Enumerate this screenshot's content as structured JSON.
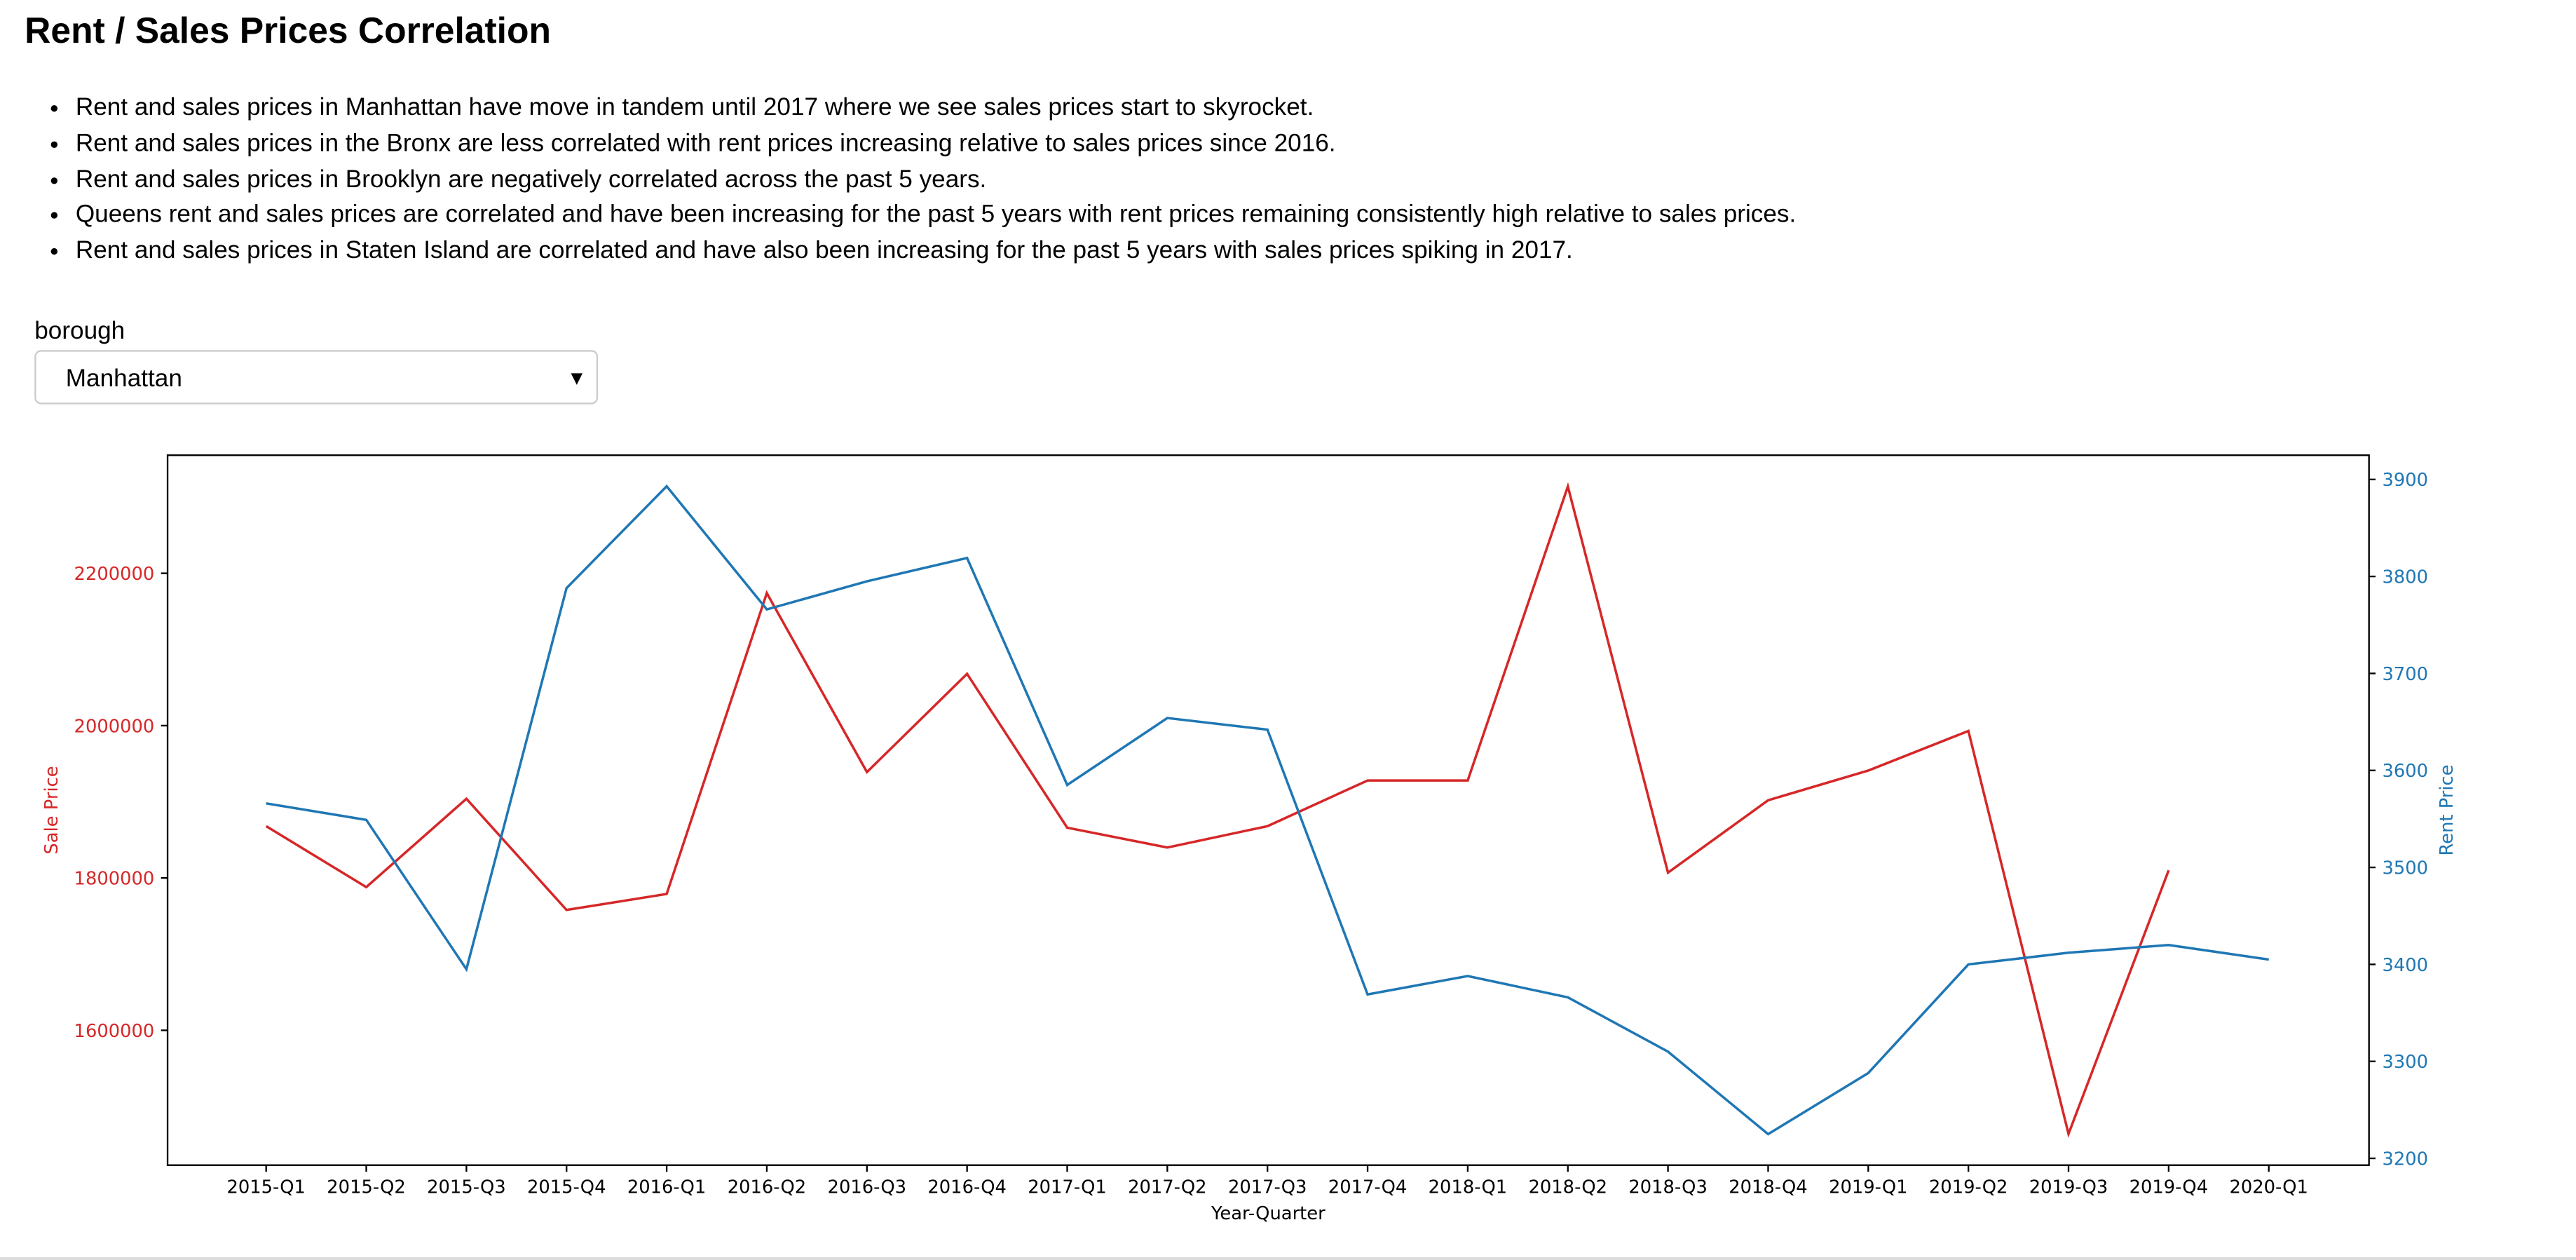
{
  "header": {
    "title": "Rent / Sales Prices Correlation"
  },
  "bullets": [
    "Rent and sales prices in Manhattan have move in tandem until 2017 where we see sales prices start to skyrocket.",
    "Rent and sales prices in the Bronx are less correlated with rent prices increasing relative to sales prices since 2016.",
    "Rent and sales prices in Brooklyn are negatively correlated across the past 5 years.",
    "Queens rent and sales prices are correlated and have been increasing for the past 5 years with rent prices remaining consistently high relative to sales prices.",
    "Rent and sales prices in Staten Island are correlated and have also been increasing for the past 5 years with sales prices spiking in 2017."
  ],
  "dropdown": {
    "label": "borough",
    "value": "Manhattan"
  },
  "chart_data": {
    "type": "line",
    "xlabel": "Year-Quarter",
    "ylabel": "Sale Price",
    "y2label": "Rent Price",
    "categories": [
      "2015-Q1",
      "2015-Q2",
      "2015-Q3",
      "2015-Q4",
      "2016-Q1",
      "2016-Q2",
      "2016-Q3",
      "2016-Q4",
      "2017-Q1",
      "2017-Q2",
      "2017-Q3",
      "2017-Q4",
      "2018-Q1",
      "2018-Q2",
      "2018-Q3",
      "2018-Q4",
      "2019-Q1",
      "2019-Q2",
      "2019-Q3",
      "2019-Q4",
      "2020-Q1"
    ],
    "series": [
      {
        "name": "Sale Price",
        "color": "#d62728",
        "axis": "y",
        "values": [
          1868000,
          1788000,
          1904000,
          1758000,
          1779000,
          2174000,
          1939000,
          2068000,
          1866000,
          1840000,
          1868000,
          1928000,
          1928000,
          2314000,
          1807000,
          1902000,
          1941000,
          1993000,
          1464000,
          1810000,
          null
        ]
      },
      {
        "name": "Rent Price",
        "color": "#1f77b4",
        "axis": "y2",
        "values": [
          3566,
          3549,
          3395,
          3788,
          3893,
          3766,
          3795,
          3819,
          3585,
          3654,
          3642,
          3369,
          3388,
          3366,
          3310,
          3225,
          3288,
          3400,
          3412,
          3420,
          3405
        ]
      }
    ],
    "ylim": [
      1423000,
      2355000
    ],
    "yticks": [
      1600000,
      1800000,
      2000000,
      2200000
    ],
    "y2lim": [
      3193,
      3925
    ],
    "y2ticks": [
      3200,
      3300,
      3400,
      3500,
      3600,
      3700,
      3800,
      3900
    ]
  }
}
